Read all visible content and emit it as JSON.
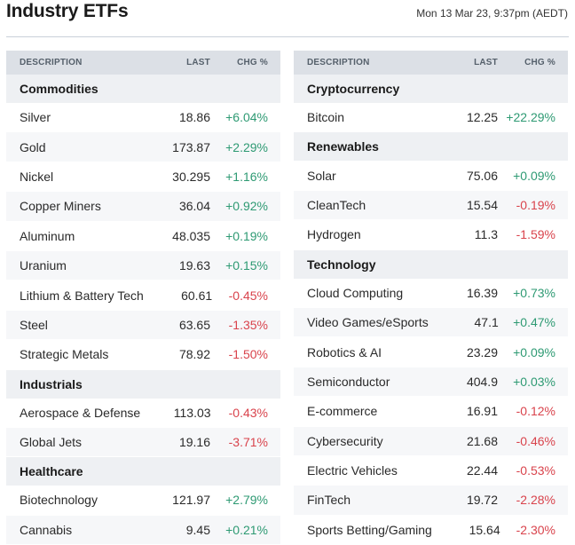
{
  "header": {
    "title": "Industry ETFs",
    "timestamp": "Mon 13 Mar 23, 9:37pm (AEDT)"
  },
  "columns": {
    "description": "DESCRIPTION",
    "last": "LAST",
    "change": "CHG %"
  },
  "colors": {
    "positive": "#2e9a73",
    "negative": "#d9434c",
    "header_bg": "#dce0e6",
    "category_bg": "#eef0f3"
  },
  "left_panel": [
    {
      "category": "Commodities",
      "rows": [
        {
          "name": "Silver",
          "last": "18.86",
          "chg": "+6.04%"
        },
        {
          "name": "Gold",
          "last": "173.87",
          "chg": "+2.29%"
        },
        {
          "name": "Nickel",
          "last": "30.295",
          "chg": "+1.16%"
        },
        {
          "name": "Copper Miners",
          "last": "36.04",
          "chg": "+0.92%"
        },
        {
          "name": "Aluminum",
          "last": "48.035",
          "chg": "+0.19%"
        },
        {
          "name": "Uranium",
          "last": "19.63",
          "chg": "+0.15%"
        },
        {
          "name": "Lithium & Battery Tech",
          "last": "60.61",
          "chg": "-0.45%"
        },
        {
          "name": "Steel",
          "last": "63.65",
          "chg": "-1.35%"
        },
        {
          "name": "Strategic Metals",
          "last": "78.92",
          "chg": "-1.50%"
        }
      ]
    },
    {
      "category": "Industrials",
      "rows": [
        {
          "name": "Aerospace & Defense",
          "last": "113.03",
          "chg": "-0.43%"
        },
        {
          "name": "Global Jets",
          "last": "19.16",
          "chg": "-3.71%"
        }
      ]
    },
    {
      "category": "Healthcare",
      "rows": [
        {
          "name": "Biotechnology",
          "last": "121.97",
          "chg": "+2.79%"
        },
        {
          "name": "Cannabis",
          "last": "9.45",
          "chg": "+0.21%"
        }
      ]
    }
  ],
  "right_panel": [
    {
      "category": "Cryptocurrency",
      "rows": [
        {
          "name": "Bitcoin",
          "last": "12.25",
          "chg": "+22.29%"
        }
      ]
    },
    {
      "category": "Renewables",
      "rows": [
        {
          "name": "Solar",
          "last": "75.06",
          "chg": "+0.09%"
        },
        {
          "name": "CleanTech",
          "last": "15.54",
          "chg": "-0.19%"
        },
        {
          "name": "Hydrogen",
          "last": "11.3",
          "chg": "-1.59%"
        }
      ]
    },
    {
      "category": "Technology",
      "rows": [
        {
          "name": "Cloud Computing",
          "last": "16.39",
          "chg": "+0.73%"
        },
        {
          "name": "Video Games/eSports",
          "last": "47.1",
          "chg": "+0.47%"
        },
        {
          "name": "Robotics & AI",
          "last": "23.29",
          "chg": "+0.09%"
        },
        {
          "name": "Semiconductor",
          "last": "404.9",
          "chg": "+0.03%"
        },
        {
          "name": "E-commerce",
          "last": "16.91",
          "chg": "-0.12%"
        },
        {
          "name": "Cybersecurity",
          "last": "21.68",
          "chg": "-0.46%"
        },
        {
          "name": "Electric Vehicles",
          "last": "22.44",
          "chg": "-0.53%"
        },
        {
          "name": "FinTech",
          "last": "19.72",
          "chg": "-2.28%"
        },
        {
          "name": "Sports Betting/Gaming",
          "last": "15.64",
          "chg": "-2.30%"
        }
      ]
    }
  ]
}
